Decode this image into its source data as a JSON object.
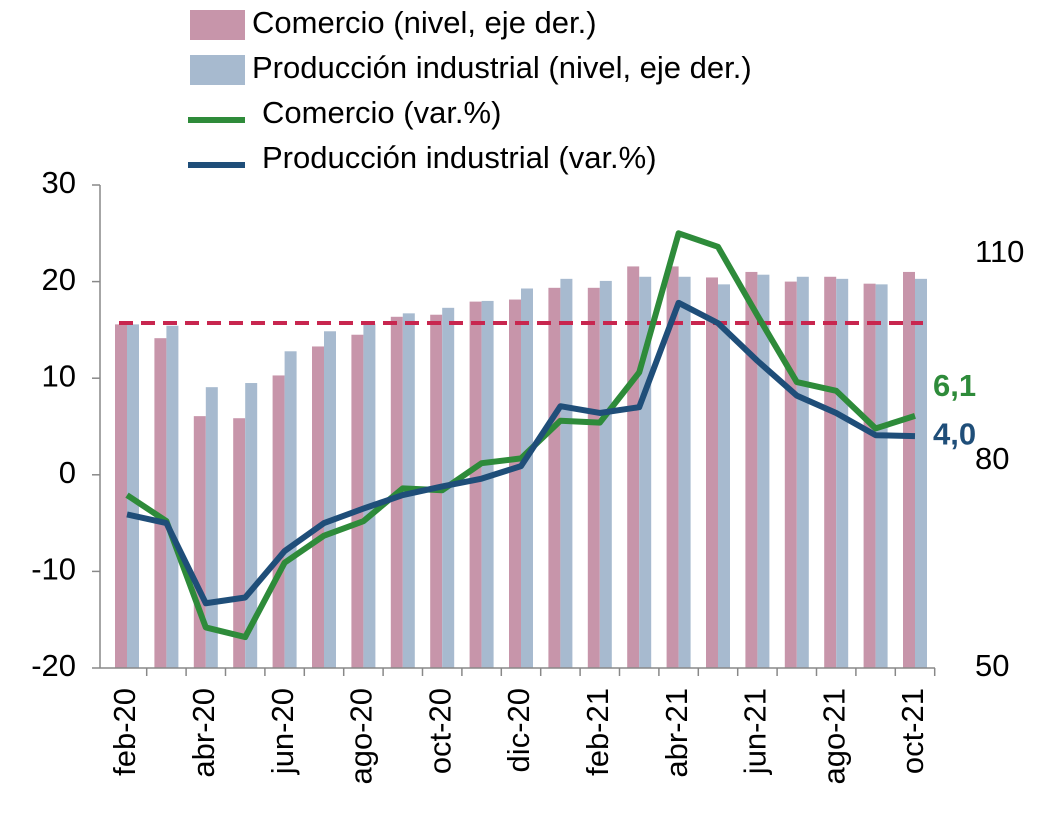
{
  "chart_data": {
    "type": "bar_line",
    "categories": [
      "feb-20",
      null,
      "abr-20",
      null,
      "jun-20",
      null,
      "ago-20",
      null,
      "oct-20",
      null,
      "dic-20",
      null,
      "feb-21",
      null,
      "abr-21",
      null,
      "jun-21",
      null,
      "ago-21",
      null,
      "oct-21"
    ],
    "series": [
      {
        "name": "Comercio (nivel, eje der.)",
        "type": "bar",
        "axis": "y2",
        "color": "#c795aa",
        "values": [
          99.8,
          97.8,
          86.5,
          86.2,
          92.4,
          96.6,
          98.3,
          100.9,
          101.2,
          103.1,
          103.4,
          105.1,
          105.1,
          108.2,
          108.2,
          106.6,
          107.4,
          106.0,
          106.7,
          105.7,
          107.4
        ]
      },
      {
        "name": "Producción industrial (nivel, eje der.)",
        "type": "bar",
        "axis": "y2",
        "color": "#a7bacf",
        "values": [
          99.8,
          99.6,
          90.7,
          91.3,
          95.9,
          98.8,
          99.9,
          101.4,
          102.2,
          103.2,
          105.0,
          106.4,
          106.1,
          106.7,
          106.7,
          105.6,
          107.0,
          106.7,
          106.4,
          105.6,
          106.4
        ]
      },
      {
        "name": "Comercio (var.%)",
        "type": "line",
        "color": "#2e8b3a",
        "values": [
          -2.1,
          -4.8,
          -15.8,
          -16.8,
          -9.1,
          -6.3,
          -4.8,
          -1.4,
          -1.6,
          1.2,
          1.7,
          5.6,
          5.4,
          10.6,
          25.0,
          23.6,
          16.5,
          9.6,
          8.7,
          4.8,
          6.1
        ],
        "value_labels": [
          null,
          null,
          null,
          null,
          null,
          null,
          null,
          null,
          null,
          null,
          null,
          null,
          null,
          null,
          null,
          null,
          null,
          null,
          null,
          null,
          "6,1"
        ]
      },
      {
        "name": "Producción industrial (var.%)",
        "type": "line",
        "color": "#1f4e79",
        "values": [
          -4.1,
          -5.0,
          -13.3,
          -12.7,
          -7.9,
          -5.0,
          -3.5,
          -2.1,
          -1.2,
          -0.4,
          0.9,
          7.1,
          6.4,
          7.0,
          17.8,
          15.7,
          11.8,
          8.2,
          6.4,
          4.1,
          4.0
        ],
        "value_labels": [
          null,
          null,
          null,
          null,
          null,
          null,
          null,
          null,
          null,
          null,
          null,
          null,
          null,
          null,
          null,
          null,
          null,
          null,
          null,
          null,
          "4,0"
        ]
      }
    ],
    "ylim": [
      -20,
      30
    ],
    "yticks": [
      -20,
      -10,
      0,
      10,
      20,
      30
    ],
    "y2lim": [
      50,
      120
    ],
    "y2ticks": [
      50,
      80,
      110
    ],
    "reference_line": {
      "value": 100,
      "axis": "y2",
      "color": "#c8264f"
    }
  }
}
